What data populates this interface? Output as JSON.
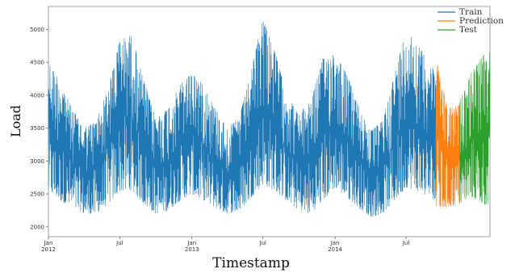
{
  "chart_data": {
    "type": "line",
    "xlabel": "Timestamp",
    "ylabel": "Load",
    "ylim": [
      1850,
      5350
    ],
    "xlim": [
      "2012-01-01",
      "2015-01-31"
    ],
    "yticks": [
      2000,
      2500,
      3000,
      3500,
      4000,
      4500,
      5000
    ],
    "yticklabels": [
      "2000",
      "2500",
      "3000",
      "3500",
      "4000",
      "4500",
      "5000"
    ],
    "xticks": [
      {
        "date": "2012-01-01",
        "label": [
          "Jan",
          "2012"
        ]
      },
      {
        "date": "2012-07-01",
        "label": [
          "Jul"
        ]
      },
      {
        "date": "2013-01-01",
        "label": [
          "Jan",
          "2013"
        ]
      },
      {
        "date": "2013-07-01",
        "label": [
          "Jul"
        ]
      },
      {
        "date": "2014-01-01",
        "label": [
          "Jan",
          "2014"
        ]
      },
      {
        "date": "2014-07-01",
        "label": [
          "Jul"
        ]
      }
    ],
    "legend": {
      "position": "top-right",
      "entries": [
        "Train",
        "Prediction",
        "Test"
      ]
    },
    "grid": false,
    "series": [
      {
        "name": "Train",
        "color": "#1f77b4",
        "x_start": "2012-01-01",
        "x_end": "2014-09-15",
        "envelope": {
          "dates": [
            "2012-01-01",
            "2012-02-01",
            "2012-03-01",
            "2012-04-01",
            "2012-05-01",
            "2012-06-01",
            "2012-07-01",
            "2012-08-01",
            "2012-09-01",
            "2012-10-01",
            "2012-11-01",
            "2012-12-01",
            "2013-01-01",
            "2013-02-01",
            "2013-03-01",
            "2013-04-01",
            "2013-05-01",
            "2013-06-01",
            "2013-07-01",
            "2013-08-01",
            "2013-09-01",
            "2013-10-01",
            "2013-11-01",
            "2013-12-01",
            "2014-01-01",
            "2014-02-01",
            "2014-03-01",
            "2014-04-01",
            "2014-05-01",
            "2014-06-01",
            "2014-07-01",
            "2014-08-01",
            "2014-09-15"
          ],
          "high": [
            4500,
            4200,
            3800,
            3500,
            3600,
            4100,
            4850,
            4900,
            4200,
            3650,
            3800,
            4150,
            4350,
            4150,
            3800,
            3500,
            3650,
            4350,
            5200,
            4650,
            4000,
            3700,
            3950,
            4550,
            4650,
            4300,
            3850,
            3450,
            3600,
            4300,
            5000,
            4750,
            4350
          ],
          "low": [
            2550,
            2400,
            2300,
            2200,
            2200,
            2350,
            2550,
            2550,
            2350,
            2200,
            2250,
            2400,
            2500,
            2400,
            2300,
            2200,
            2250,
            2450,
            2650,
            2550,
            2400,
            2250,
            2200,
            2400,
            2600,
            2450,
            2300,
            2150,
            2200,
            2400,
            2600,
            2550,
            2400
          ]
        }
      },
      {
        "name": "Prediction",
        "color": "#ff7f0e",
        "x_start": "2014-09-15",
        "x_end": "2014-11-15",
        "envelope": {
          "dates": [
            "2014-09-15",
            "2014-10-15",
            "2014-11-15"
          ],
          "high": [
            4600,
            3800,
            3850
          ],
          "low": [
            2250,
            2300,
            2350
          ]
        }
      },
      {
        "name": "Test",
        "color": "#2ca02c",
        "x_start": "2014-11-15",
        "x_end": "2015-01-31",
        "envelope": {
          "dates": [
            "2014-11-15",
            "2014-12-15",
            "2015-01-31"
          ],
          "high": [
            3900,
            4350,
            4750
          ],
          "low": [
            2350,
            2450,
            2300
          ]
        }
      }
    ]
  }
}
